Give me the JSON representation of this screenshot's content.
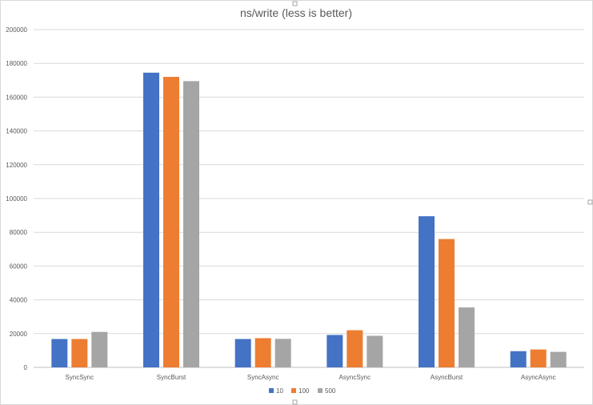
{
  "chart_data": {
    "type": "bar",
    "title": "ns/write (less is better)",
    "categories": [
      "SyncSync",
      "SyncBurst",
      "SyncAsync",
      "AsyncSync",
      "AsyncBurst",
      "AsyncAsync"
    ],
    "series": [
      {
        "name": "10",
        "color": "#4472c4",
        "values": [
          16800,
          174500,
          16800,
          19200,
          89500,
          9600
        ]
      },
      {
        "name": "100",
        "color": "#ed7d31",
        "values": [
          16800,
          172000,
          17300,
          22000,
          76000,
          10600
        ]
      },
      {
        "name": "500",
        "color": "#a5a5a5",
        "values": [
          21000,
          169500,
          16900,
          18700,
          35500,
          9200
        ]
      }
    ],
    "ylim": [
      0,
      200000
    ],
    "yticks": [
      "0",
      "20000",
      "40000",
      "60000",
      "80000",
      "100000",
      "120000",
      "140000",
      "160000",
      "180000",
      "200000"
    ],
    "grid": true,
    "legend_position": "bottom"
  }
}
